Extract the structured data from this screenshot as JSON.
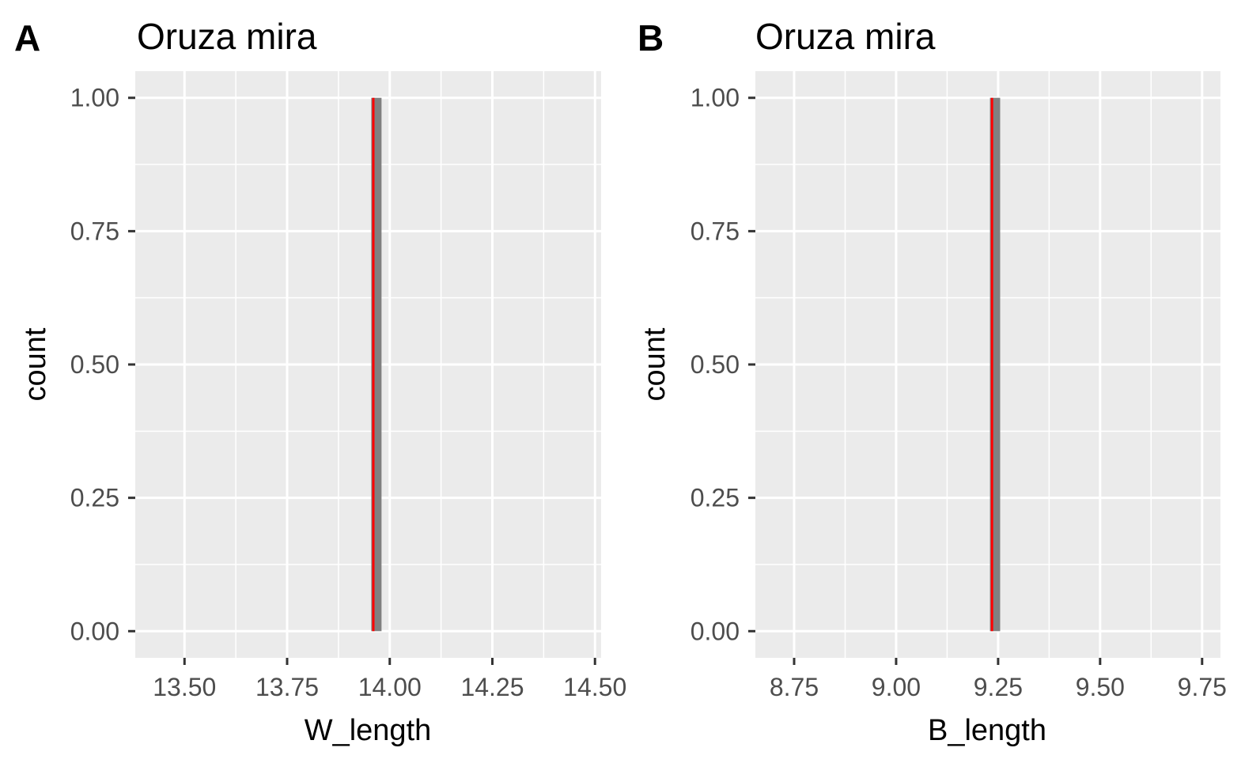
{
  "colors": {
    "panel_bg": "#ebebeb",
    "grid": "#ffffff",
    "bar_fill": "#808080",
    "mean_line": "#ff0000",
    "tick": "#333333"
  },
  "chart_data": [
    {
      "type": "bar",
      "panel_label": "A",
      "title": "Oruza mira",
      "xlabel": "W_length",
      "ylabel": "count",
      "xlim": [
        13.38,
        14.515
      ],
      "ylim": [
        -0.05,
        1.05
      ],
      "x_ticks": [
        13.5,
        13.75,
        14.0,
        14.25,
        14.5
      ],
      "x_tick_labels": [
        "13.50",
        "13.75",
        "14.00",
        "14.25",
        "14.50"
      ],
      "y_ticks": [
        0,
        0.25,
        0.5,
        0.75,
        1.0
      ],
      "y_tick_labels": [
        "0.00",
        "0.25",
        "0.50",
        "0.75",
        "1.00"
      ],
      "bars": [
        {
          "x_start": 13.955,
          "x_end": 13.98,
          "count": 1
        }
      ],
      "mean_line_x": 13.96,
      "grid": true
    },
    {
      "type": "bar",
      "panel_label": "B",
      "title": "Oruza mira",
      "xlabel": "B_length",
      "ylabel": "count",
      "xlim": [
        8.655,
        9.795
      ],
      "ylim": [
        -0.05,
        1.05
      ],
      "x_ticks": [
        8.75,
        9.0,
        9.25,
        9.5,
        9.75
      ],
      "x_tick_labels": [
        "8.75",
        "9.00",
        "9.25",
        "9.50",
        "9.75"
      ],
      "y_ticks": [
        0,
        0.25,
        0.5,
        0.75,
        1.0
      ],
      "y_tick_labels": [
        "0.00",
        "0.25",
        "0.50",
        "0.75",
        "1.00"
      ],
      "bars": [
        {
          "x_start": 9.23,
          "x_end": 9.255,
          "count": 1
        }
      ],
      "mean_line_x": 9.235,
      "grid": true
    }
  ]
}
